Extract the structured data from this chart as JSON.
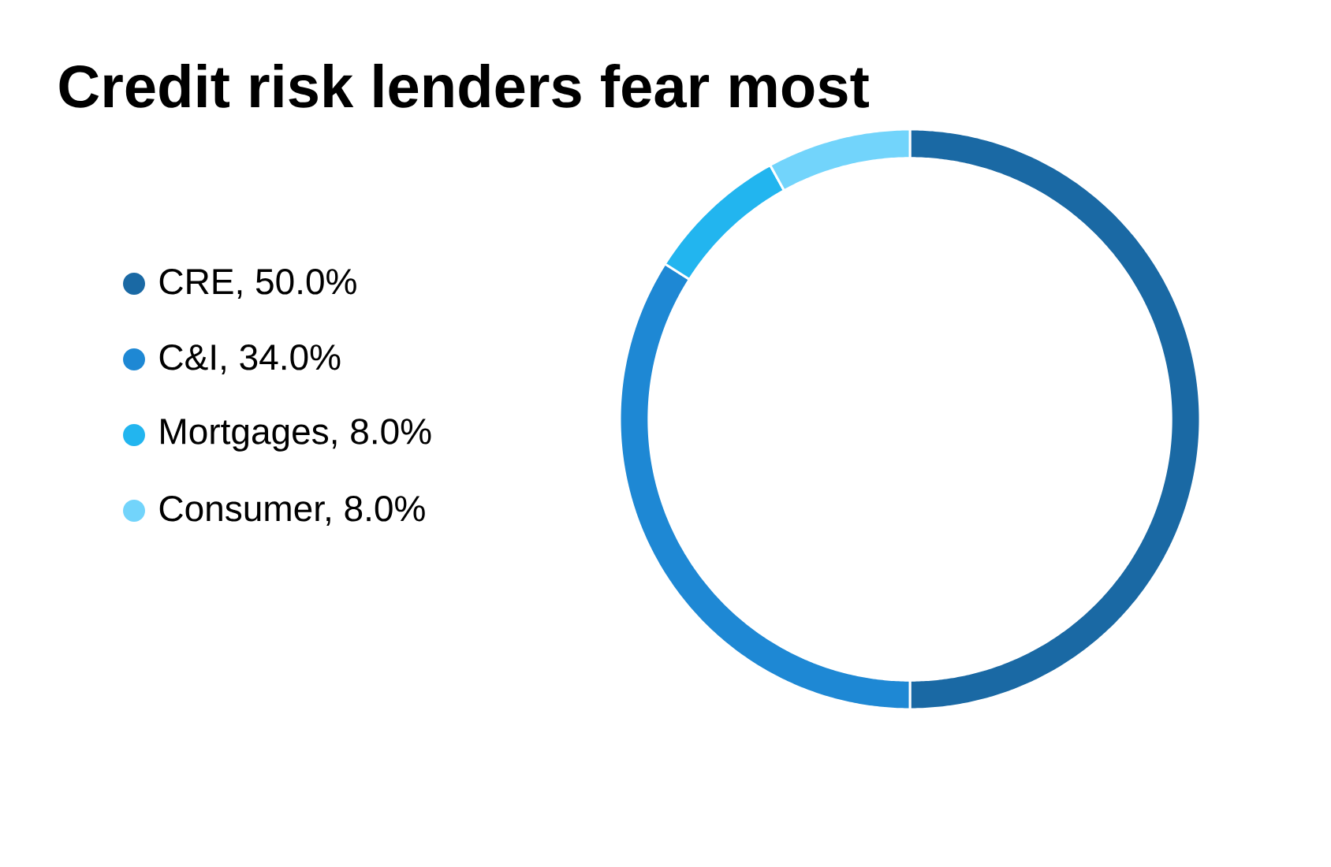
{
  "chart_data": {
    "type": "donut",
    "title": "Credit risk lenders fear most",
    "categories": [
      "CRE, 50.0%",
      "C&I, 34.0%",
      "Mortgages, 8.0%",
      "Consumer, 8.0%"
    ],
    "values": [
      50.0,
      34.0,
      8.0,
      8.0
    ],
    "colors": [
      "#1a69a4",
      "#1e88d4",
      "#22b5ef",
      "#72d4fb"
    ],
    "legend": "left"
  }
}
